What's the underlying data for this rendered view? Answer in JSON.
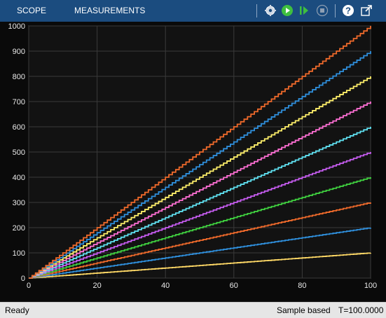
{
  "toolbar": {
    "tabs": [
      {
        "label": "SCOPE"
      },
      {
        "label": "MEASUREMENTS"
      }
    ],
    "buttons": [
      {
        "icon": "settings-gear-icon"
      },
      {
        "icon": "run-icon"
      },
      {
        "icon": "step-forward-icon"
      },
      {
        "icon": "stop-icon"
      },
      {
        "icon": "help-icon"
      },
      {
        "icon": "undock-icon"
      }
    ],
    "colors": {
      "background": "#1b4c7f",
      "run": "#3fbf3f",
      "stop": "#9a9a9a"
    }
  },
  "status": {
    "left": "Ready",
    "mode": "Sample based",
    "time": "T=100.0000"
  },
  "chart_data": {
    "type": "line",
    "step": true,
    "xlim": [
      0,
      100
    ],
    "ylim": [
      0,
      1000
    ],
    "x_ticks": [
      0,
      20,
      40,
      60,
      80,
      100
    ],
    "y_ticks": [
      0,
      100,
      200,
      300,
      400,
      500,
      600,
      700,
      800,
      900,
      1000
    ],
    "grid": true,
    "background": "#121212",
    "series": [
      {
        "slope": 1,
        "end_value": 100,
        "color": "#ffd966"
      },
      {
        "slope": 2,
        "end_value": 200,
        "color": "#2f8fdc"
      },
      {
        "slope": 3,
        "end_value": 300,
        "color": "#ef6a2b"
      },
      {
        "slope": 4,
        "end_value": 400,
        "color": "#3fcf3f"
      },
      {
        "slope": 5,
        "end_value": 500,
        "color": "#c65cf0"
      },
      {
        "slope": 6,
        "end_value": 600,
        "color": "#5fe0f0"
      },
      {
        "slope": 7,
        "end_value": 700,
        "color": "#ff6fd4"
      },
      {
        "slope": 8,
        "end_value": 800,
        "color": "#ffef6a"
      },
      {
        "slope": 9,
        "end_value": 900,
        "color": "#2f8fdc"
      },
      {
        "slope": 10,
        "end_value": 1000,
        "color": "#ef6a2b"
      }
    ]
  }
}
